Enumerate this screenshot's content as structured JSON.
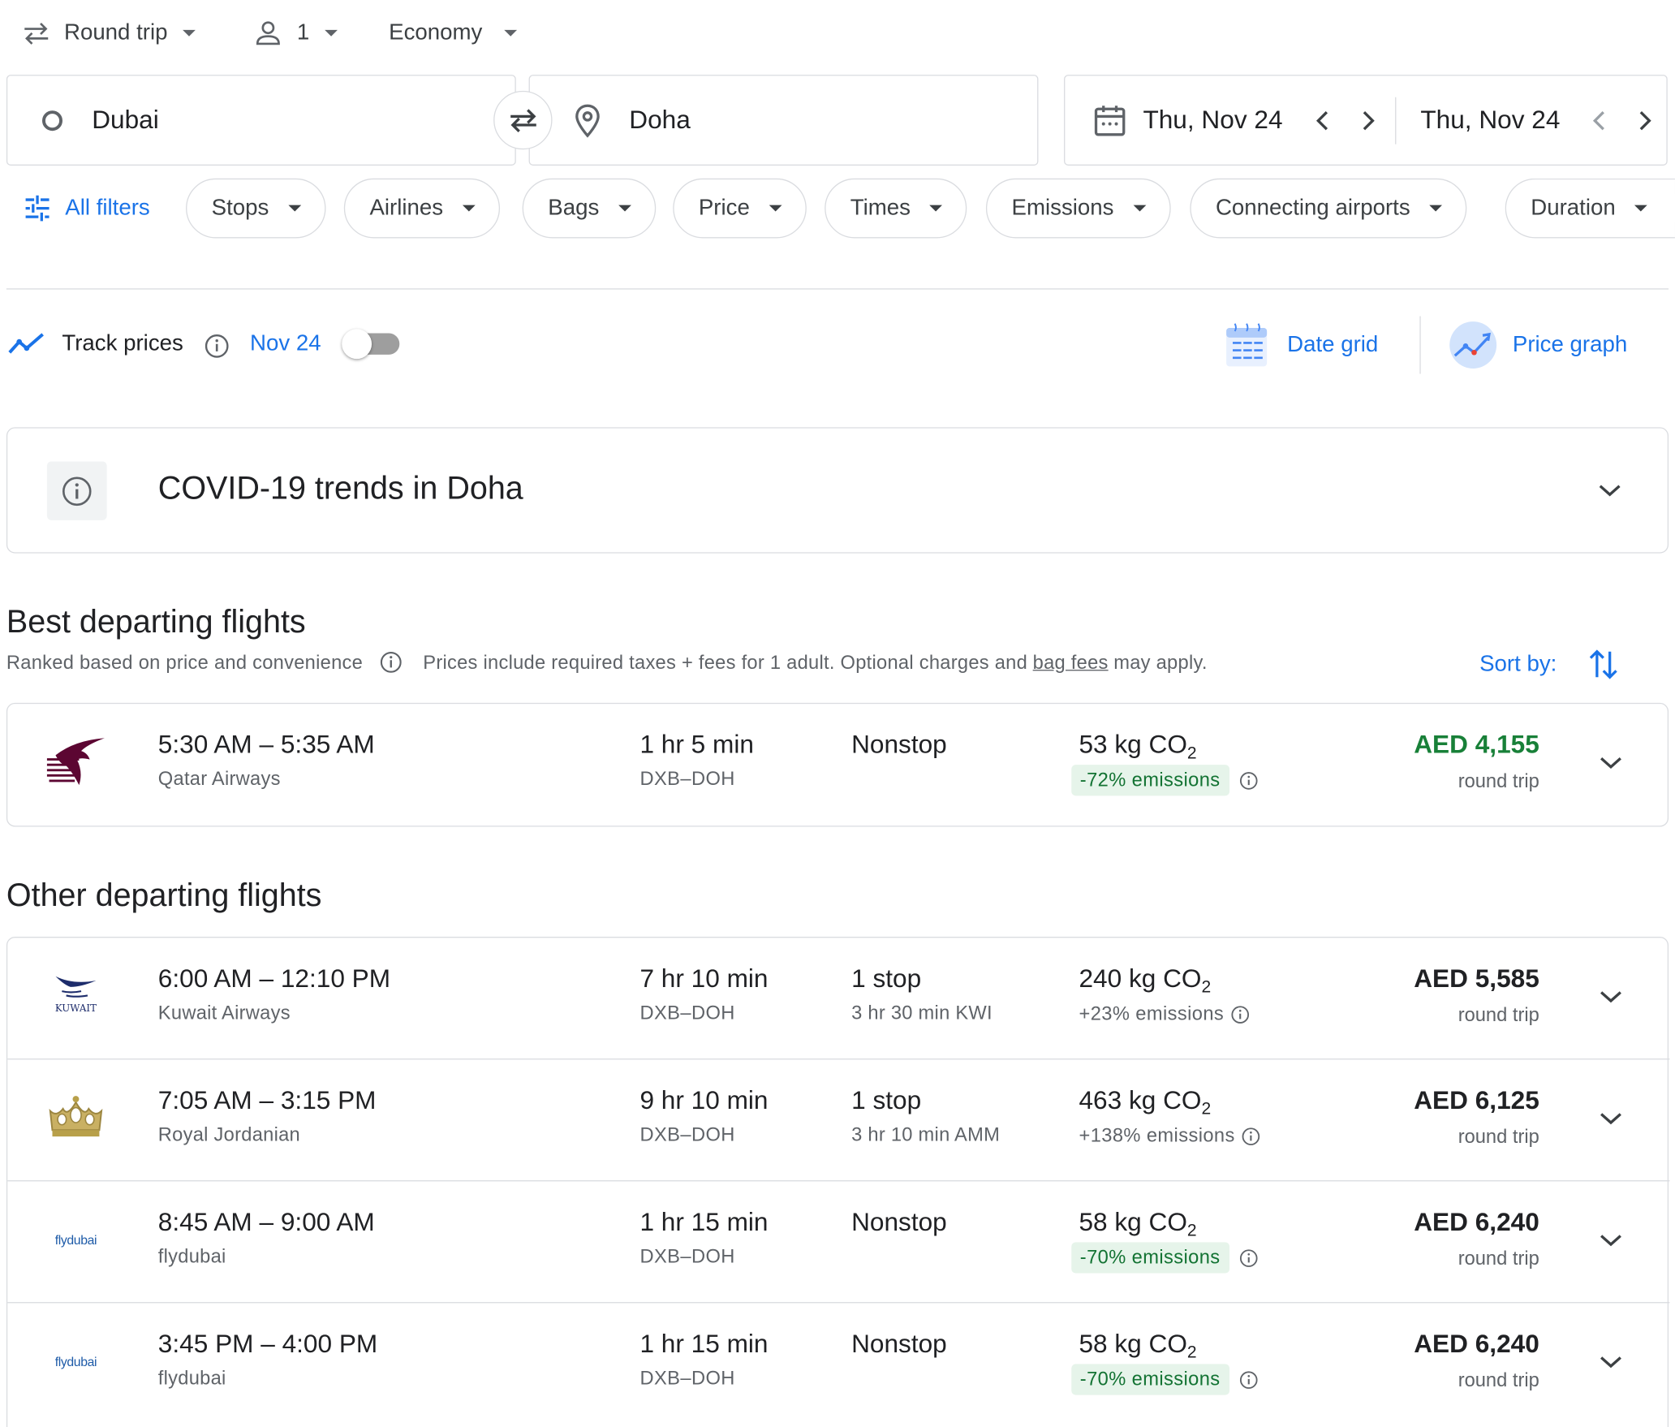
{
  "trip_options": {
    "trip_type": "Round trip",
    "passengers": "1",
    "cabin": "Economy"
  },
  "search": {
    "origin": "Dubai",
    "destination": "Doha",
    "depart_date": "Thu, Nov 24",
    "return_date": "Thu, Nov 24"
  },
  "filters": {
    "all_filters": "All filters",
    "chips": [
      "Stops",
      "Airlines",
      "Bags",
      "Price",
      "Times",
      "Emissions",
      "Connecting airports",
      "Duration"
    ]
  },
  "tools": {
    "track_prices": "Track prices",
    "track_date": "Nov 24",
    "date_grid": "Date grid",
    "price_graph": "Price graph"
  },
  "covid": {
    "title": "COVID-19 trends in Doha"
  },
  "best": {
    "heading": "Best departing flights",
    "ranked": "Ranked based on price and convenience",
    "prices_note_pre": "Prices include required taxes + fees for 1 adult. Optional charges and",
    "bag_fees": "bag fees",
    "prices_note_post": "may apply.",
    "sort_by": "Sort by:",
    "flights": [
      {
        "time": "5:30 AM – 5:35 AM",
        "airline": "Qatar Airways",
        "duration": "1 hr 5 min",
        "route": "DXB–DOH",
        "stops": "Nonstop",
        "layover": "",
        "co2_value": "53 kg CO",
        "co2_sub": "2",
        "emissions": "-72% emissions",
        "emissions_level": "low",
        "price": "AED 4,155",
        "price_type": "round trip",
        "logo": "qatar-airways-logo"
      }
    ]
  },
  "other": {
    "heading": "Other departing flights",
    "flights": [
      {
        "time": "6:00 AM – 12:10 PM",
        "airline": "Kuwait Airways",
        "duration": "7 hr 10 min",
        "route": "DXB–DOH",
        "stops": "1 stop",
        "layover": "3 hr 30 min KWI",
        "co2_value": "240 kg CO",
        "co2_sub": "2",
        "emissions": "+23% emissions",
        "emissions_level": "high",
        "price": "AED 5,585",
        "price_type": "round trip",
        "logo": "kuwait-airways-logo",
        "logo_text": "KUWAIT"
      },
      {
        "time": "7:05 AM – 3:15 PM",
        "airline": "Royal Jordanian",
        "duration": "9 hr 10 min",
        "route": "DXB–DOH",
        "stops": "1 stop",
        "layover": "3 hr 10 min AMM",
        "co2_value": "463 kg CO",
        "co2_sub": "2",
        "emissions": "+138% emissions",
        "emissions_level": "high",
        "price": "AED 6,125",
        "price_type": "round trip",
        "logo": "royal-jordanian-logo"
      },
      {
        "time": "8:45 AM – 9:00 AM",
        "airline": "flydubai",
        "duration": "1 hr 15 min",
        "route": "DXB–DOH",
        "stops": "Nonstop",
        "layover": "",
        "co2_value": "58 kg CO",
        "co2_sub": "2",
        "emissions": "-70% emissions",
        "emissions_level": "low",
        "price": "AED 6,240",
        "price_type": "round trip",
        "logo": "flydubai-logo",
        "logo_text": "flydubai"
      },
      {
        "time": "3:45 PM – 4:00 PM",
        "airline": "flydubai",
        "duration": "1 hr 15 min",
        "route": "DXB–DOH",
        "stops": "Nonstop",
        "layover": "",
        "co2_value": "58 kg CO",
        "co2_sub": "2",
        "emissions": "-70% emissions",
        "emissions_level": "low",
        "price": "AED 6,240",
        "price_type": "round trip",
        "logo": "flydubai-logo",
        "logo_text": "flydubai"
      }
    ]
  },
  "colors": {
    "accent": "#1a73e8",
    "best_price": "#188038",
    "low_emissions_bg": "#e6f4ea",
    "low_emissions_text": "#137333",
    "qatar_maroon": "#5c0632",
    "kuwait_blue": "#1d2c6b",
    "rj_gold": "#b8a04a",
    "flydubai_blue": "#1e5ba8",
    "flydubai_orange": "#f47b20"
  }
}
